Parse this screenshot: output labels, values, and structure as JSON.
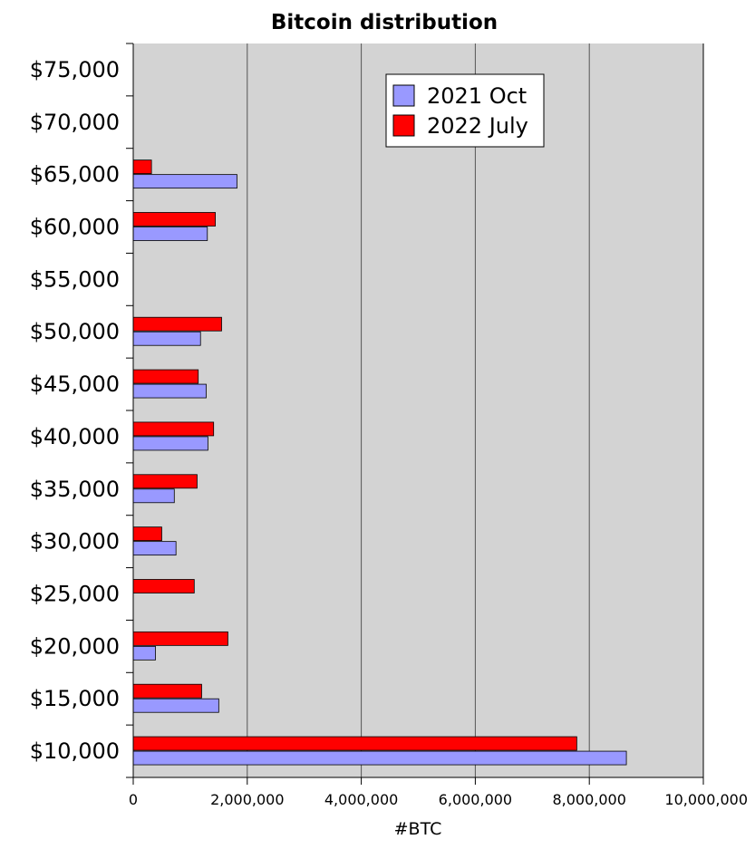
{
  "chart_data": {
    "type": "bar",
    "orientation": "horizontal",
    "title": "Bitcoin distribution",
    "xlabel": "#BTC",
    "ylabel": "",
    "categories": [
      "$75,000",
      "$70,000",
      "$65,000",
      "$60,000",
      "$55,000",
      "$50,000",
      "$45,000",
      "$40,000",
      "$35,000",
      "$30,000",
      "$25,000",
      "$20,000",
      "$15,000",
      "$10,000"
    ],
    "series": [
      {
        "name": "2021 Oct",
        "color": "#9999ff",
        "values": [
          0,
          0,
          1820000,
          1300000,
          0,
          1180000,
          1280000,
          1310000,
          720000,
          750000,
          0,
          390000,
          1500000,
          8650000
        ]
      },
      {
        "name": "2022 July",
        "color": "#ff0000",
        "values": [
          0,
          0,
          320000,
          1440000,
          0,
          1550000,
          1140000,
          1410000,
          1120000,
          500000,
          1070000,
          1660000,
          1200000,
          7780000
        ]
      }
    ],
    "xlim": [
      0,
      10000000
    ],
    "x_ticks": [
      "0",
      "2,000,000",
      "4,000,000",
      "6,000,000",
      "8,000,000",
      "10,000,000"
    ],
    "x_tick_values": [
      0,
      2000000,
      4000000,
      6000000,
      8000000,
      10000000
    ],
    "grid": "vertical",
    "legend_position": "top-right",
    "plot_background": "#d3d3d3"
  }
}
